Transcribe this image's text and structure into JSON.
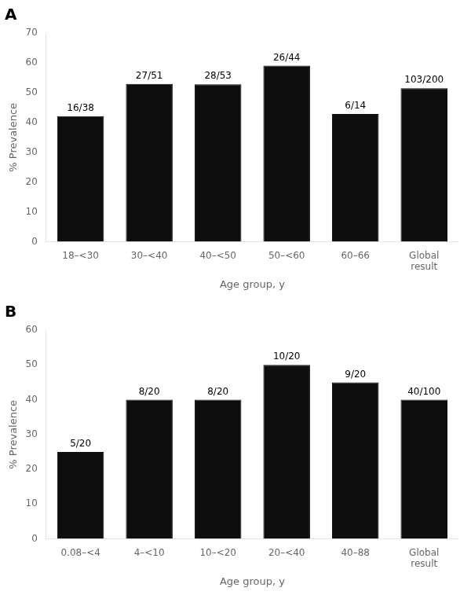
{
  "chart_data": [
    {
      "type": "bar",
      "title": "A",
      "categories": [
        "18–<30",
        "30–<40",
        "40–<50",
        "50–<60",
        "60–66",
        "Global\nresult"
      ],
      "values": [
        42.105,
        52.941,
        52.83,
        59.091,
        42.857,
        51.5
      ],
      "value_labels": [
        "16/38",
        "27/51",
        "28/53",
        "26/44",
        "6/14",
        "103/200"
      ],
      "color": "#0d0d0d",
      "ylim": [
        0,
        70
      ],
      "yticks": [
        0,
        10,
        20,
        30,
        40,
        50,
        60,
        70
      ],
      "ylabel": "% Prevalence",
      "xlabel": "Age group, y",
      "grid": false
    },
    {
      "type": "bar",
      "title": "B",
      "categories": [
        "0.08–<4",
        "4–<10",
        "10–<20",
        "20–<40",
        "40–88",
        "Global\nresult"
      ],
      "values": [
        25.0,
        40.0,
        40.0,
        50.0,
        45.0,
        40.0
      ],
      "value_labels": [
        "5/20",
        "8/20",
        "8/20",
        "10/20",
        "9/20",
        "40/100"
      ],
      "color": "#0d0d0d",
      "ylim": [
        0,
        60
      ],
      "yticks": [
        0,
        10,
        20,
        30,
        40,
        50,
        60
      ],
      "ylabel": "% Prevalence",
      "xlabel": "Age group, y",
      "grid": false
    }
  ]
}
